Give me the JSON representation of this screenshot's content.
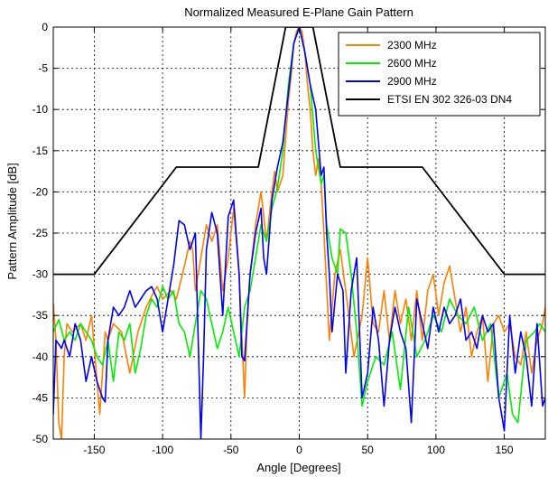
{
  "chart_data": {
    "type": "line",
    "title": "Normalized Measured E-Plane Gain Pattern",
    "xlabel": "Angle [Degrees]",
    "ylabel": "Pattern Amplitude [dB]",
    "xlim": [
      -180,
      180
    ],
    "ylim": [
      -50,
      0
    ],
    "xticks": [
      -150,
      -100,
      -50,
      0,
      50,
      100,
      150
    ],
    "yticks": [
      0,
      -5,
      -10,
      -15,
      -20,
      -25,
      -30,
      -35,
      -40,
      -45,
      -50
    ],
    "grid": true,
    "legend_position": "top-right",
    "series": [
      {
        "name": "2300 MHz",
        "color": "#ff8000",
        "x": [
          -180,
          -178,
          -176,
          -174,
          -172,
          -170,
          -166,
          -160,
          -156,
          -152,
          -146,
          -144,
          -142,
          -140,
          -136,
          -130,
          -124,
          -118,
          -112,
          -106,
          -104,
          -100,
          -94,
          -90,
          -84,
          -80,
          -78,
          -76,
          -72,
          -68,
          -64,
          -60,
          -56,
          -52,
          -48,
          -44,
          -40,
          -38,
          -36,
          -32,
          -28,
          -24,
          -20,
          -18,
          -16,
          -12,
          -8,
          -6,
          -4,
          -2,
          0,
          2,
          4,
          6,
          8,
          10,
          12,
          14,
          16,
          18,
          22,
          26,
          30,
          34,
          40,
          46,
          50,
          54,
          58,
          62,
          66,
          70,
          74,
          78,
          82,
          86,
          90,
          94,
          98,
          102,
          106,
          110,
          114,
          118,
          122,
          126,
          130,
          134,
          138,
          142,
          146,
          150,
          154,
          158,
          162,
          166,
          170,
          174,
          178,
          180
        ],
        "values": [
          -33.5,
          -38,
          -48,
          -50,
          -40,
          -36,
          -37,
          -36,
          -38,
          -35,
          -47,
          -42,
          -37,
          -38,
          -36,
          -37,
          -42,
          -37,
          -34,
          -32,
          -31.5,
          -33,
          -32,
          -33,
          -29,
          -26,
          -27,
          -32,
          -28,
          -24,
          -26,
          -24,
          -32,
          -28,
          -22,
          -30,
          -45,
          -35,
          -30,
          -24,
          -20,
          -26,
          -20,
          -17.5,
          -20,
          -18,
          -9,
          -6,
          -2,
          -0.5,
          0,
          -0.5,
          -3,
          -7,
          -10,
          -15,
          -18,
          -16,
          -19,
          -25,
          -38,
          -30,
          -27,
          -32,
          -40,
          -35,
          -28,
          -36,
          -37,
          -32,
          -38,
          -32,
          -36,
          -33,
          -38,
          -32,
          -38,
          -32,
          -30,
          -35,
          -31,
          -29,
          -33,
          -37,
          -34,
          -40,
          -37,
          -35,
          -43,
          -36,
          -35,
          -37,
          -36,
          -40,
          -41,
          -37,
          -42,
          -38,
          -36,
          -34
        ]
      },
      {
        "name": "2600 MHz",
        "color": "#00ee00",
        "x": [
          -180,
          -176,
          -172,
          -168,
          -164,
          -160,
          -156,
          -152,
          -148,
          -144,
          -140,
          -136,
          -132,
          -128,
          -124,
          -120,
          -116,
          -112,
          -108,
          -104,
          -100,
          -96,
          -92,
          -88,
          -84,
          -80,
          -76,
          -72,
          -68,
          -64,
          -60,
          -56,
          -52,
          -48,
          -44,
          -40,
          -36,
          -32,
          -28,
          -26,
          -24,
          -20,
          -16,
          -12,
          -8,
          -4,
          0,
          4,
          8,
          12,
          16,
          18,
          20,
          24,
          28,
          30,
          34,
          38,
          42,
          46,
          50,
          56,
          62,
          68,
          74,
          80,
          86,
          92,
          98,
          104,
          110,
          116,
          122,
          128,
          134,
          140,
          146,
          152,
          156,
          160,
          166,
          172,
          176,
          180
        ],
        "values": [
          -37,
          -35.5,
          -38,
          -37,
          -38,
          -36,
          -37,
          -38,
          -40,
          -41,
          -38,
          -43,
          -37,
          -38,
          -36,
          -42,
          -39,
          -35,
          -33,
          -34,
          -31.5,
          -33,
          -32,
          -36,
          -37,
          -40,
          -36,
          -32,
          -33,
          -36,
          -39,
          -37,
          -34,
          -37,
          -40,
          -34,
          -32,
          -28,
          -24,
          -25,
          -26,
          -22,
          -19.5,
          -15,
          -7,
          -2,
          0,
          -3,
          -7,
          -15,
          -19,
          -18,
          -24,
          -28,
          -30,
          -24.5,
          -25,
          -30,
          -37,
          -46,
          -43,
          -40,
          -41,
          -37,
          -44,
          -34,
          -40,
          -38,
          -35,
          -37,
          -33,
          -35,
          -36,
          -34,
          -38,
          -36,
          -45,
          -42,
          -47,
          -48,
          -38,
          -37,
          -36,
          -37
        ]
      },
      {
        "name": "2900 MHz",
        "color": "#0000ff",
        "x": [
          -180,
          -178,
          -176,
          -174,
          -172,
          -168,
          -164,
          -160,
          -156,
          -152,
          -148,
          -144,
          -142,
          -140,
          -136,
          -132,
          -128,
          -124,
          -120,
          -116,
          -112,
          -108,
          -104,
          -100,
          -96,
          -92,
          -88,
          -84,
          -80,
          -76,
          -72,
          -70,
          -68,
          -64,
          -60,
          -56,
          -52,
          -48,
          -44,
          -42,
          -40,
          -36,
          -32,
          -28,
          -26,
          -24,
          -20,
          -16,
          -12,
          -8,
          -4,
          0,
          4,
          8,
          12,
          16,
          18,
          20,
          22,
          24,
          28,
          32,
          34,
          38,
          42,
          46,
          50,
          54,
          58,
          62,
          66,
          70,
          74,
          78,
          82,
          86,
          90,
          94,
          98,
          102,
          106,
          110,
          114,
          118,
          122,
          126,
          130,
          134,
          138,
          142,
          146,
          150,
          154,
          158,
          162,
          166,
          170,
          174,
          176,
          178,
          180
        ],
        "values": [
          -47,
          -38,
          -38.5,
          -39,
          -38,
          -40,
          -36,
          -38,
          -43,
          -40,
          -43,
          -45,
          -45.5,
          -38,
          -34,
          -35,
          -34,
          -32,
          -34,
          -33,
          -32,
          -31.5,
          -33,
          -37,
          -33,
          -29,
          -23.5,
          -24,
          -27,
          -25,
          -50,
          -40,
          -27,
          -22.5,
          -25,
          -35,
          -23,
          -21,
          -30,
          -40,
          -40.5,
          -30,
          -25,
          -22,
          -28,
          -30,
          -21,
          -17,
          -14,
          -8,
          -2,
          0,
          -3,
          -7,
          -10,
          -18,
          -17,
          -25,
          -30,
          -37,
          -30,
          -32,
          -42,
          -32,
          -28,
          -45,
          -42,
          -34,
          -38,
          -46,
          -38,
          -34,
          -37,
          -39,
          -48,
          -33,
          -36,
          -39,
          -34,
          -37,
          -34,
          -36,
          -35,
          -33,
          -38,
          -37,
          -39,
          -35,
          -37,
          -36,
          -45,
          -49,
          -35,
          -42,
          -37,
          -40,
          -46,
          -36,
          -41,
          -46,
          -45
        ]
      },
      {
        "name": "ETSI EN 302 326-03 DN4",
        "color": "#000000",
        "x": [
          -180,
          -150,
          -90,
          -30,
          -10,
          10,
          30,
          90,
          150,
          180
        ],
        "values": [
          -30,
          -30,
          -17,
          -17,
          0,
          0,
          -17,
          -17,
          -30,
          -30
        ]
      }
    ]
  }
}
